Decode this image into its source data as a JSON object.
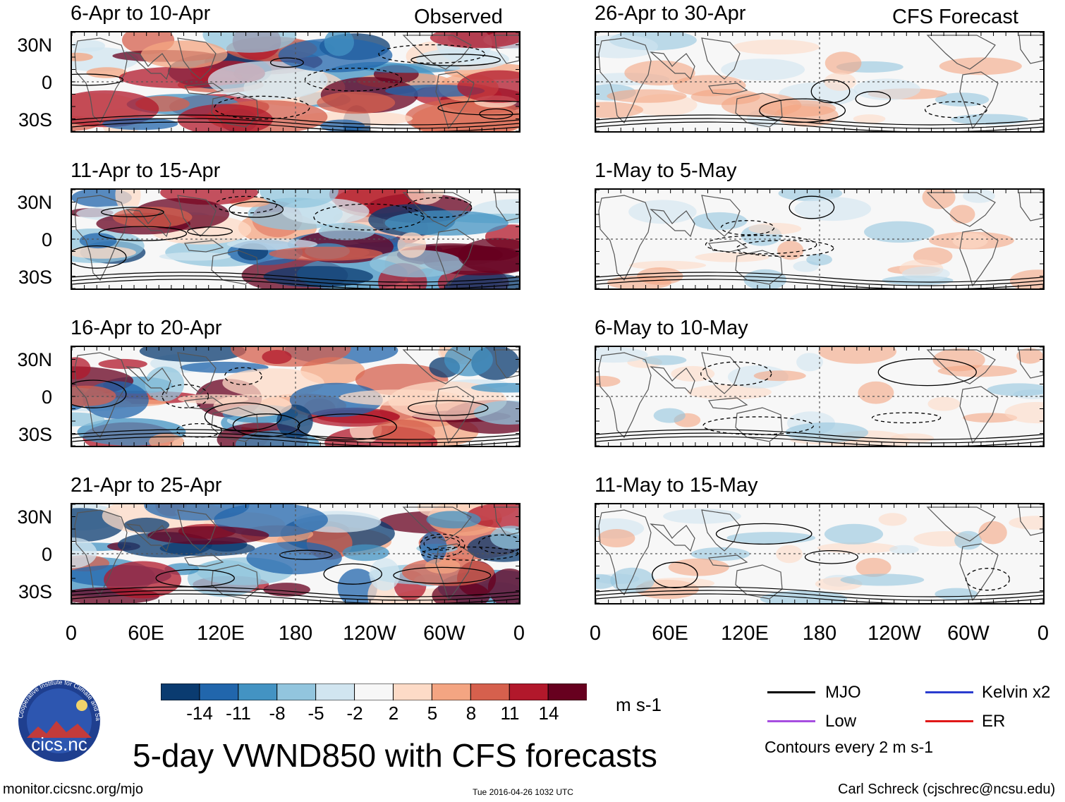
{
  "observed_label": "Observed",
  "forecast_label": "CFS Forecast",
  "observed_panels": [
    {
      "title": "6-Apr to 10-Apr"
    },
    {
      "title": "11-Apr to 15-Apr"
    },
    {
      "title": "16-Apr to 20-Apr"
    },
    {
      "title": "21-Apr to 25-Apr"
    }
  ],
  "forecast_panels": [
    {
      "title": "26-Apr to 30-Apr"
    },
    {
      "title": "1-May to 5-May"
    },
    {
      "title": "6-May to 10-May"
    },
    {
      "title": "11-May to 15-May"
    }
  ],
  "lat_labels": [
    "30N",
    "0",
    "30S"
  ],
  "lon_labels": [
    "0",
    "60E",
    "120E",
    "180",
    "120W",
    "60W",
    "0"
  ],
  "colorbar": {
    "ticks": [
      "-14",
      "-11",
      "-8",
      "-5",
      "-2",
      "2",
      "5",
      "8",
      "11",
      "14"
    ],
    "colors": [
      "#0a3b70",
      "#2166ac",
      "#4393c3",
      "#92c5de",
      "#d1e5f0",
      "#f7f7f7",
      "#fddbc7",
      "#f4a582",
      "#d6604d",
      "#b2182b",
      "#67001f"
    ],
    "units": "m s-1"
  },
  "legend": {
    "mjo": "MJO",
    "kelvin": "Kelvin x2",
    "low": "Low",
    "er": "ER",
    "contours_note": "Contours every 2 m s-1",
    "colors": {
      "mjo": "#000000",
      "kelvin": "#2a3ccf",
      "low": "#a64ee0",
      "er": "#e01818"
    }
  },
  "main_title": "5-day VWND850 with CFS forecasts",
  "logo_text": "cics.nc",
  "logo_ring_text": "Cooperative Institute for Climate and Satellites",
  "footer": {
    "url": "monitor.cicsnc.org/mjo",
    "timestamp": "Tue 2016-04-26 1032 UTC",
    "credit": "Carl Schreck (cjschrec@ncsu.edu)"
  }
}
